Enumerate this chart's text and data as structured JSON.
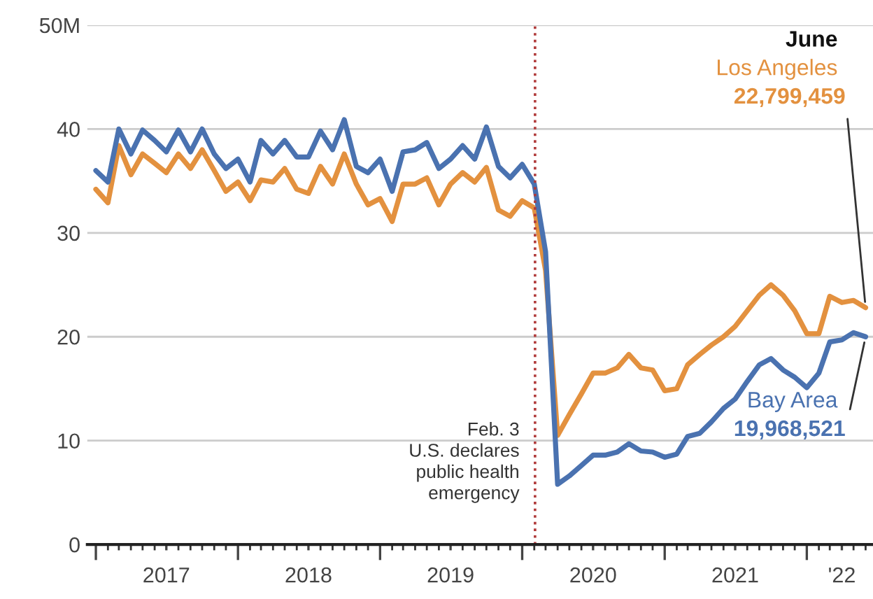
{
  "chart_data": {
    "type": "line",
    "x": [
      "2017-01",
      "2017-02",
      "2017-03",
      "2017-04",
      "2017-05",
      "2017-06",
      "2017-07",
      "2017-08",
      "2017-09",
      "2017-10",
      "2017-11",
      "2017-12",
      "2018-01",
      "2018-02",
      "2018-03",
      "2018-04",
      "2018-05",
      "2018-06",
      "2018-07",
      "2018-08",
      "2018-09",
      "2018-10",
      "2018-11",
      "2018-12",
      "2019-01",
      "2019-02",
      "2019-03",
      "2019-04",
      "2019-05",
      "2019-06",
      "2019-07",
      "2019-08",
      "2019-09",
      "2019-10",
      "2019-11",
      "2019-12",
      "2020-01",
      "2020-02",
      "2020-03",
      "2020-04",
      "2020-05",
      "2020-06",
      "2020-07",
      "2020-08",
      "2020-09",
      "2020-10",
      "2020-11",
      "2020-12",
      "2021-01",
      "2021-02",
      "2021-03",
      "2021-04",
      "2021-05",
      "2021-06",
      "2021-07",
      "2021-08",
      "2021-09",
      "2021-10",
      "2021-11",
      "2021-12",
      "2022-01",
      "2022-02",
      "2022-03",
      "2022-04",
      "2022-05",
      "2022-06"
    ],
    "series": [
      {
        "name": "Los Angeles",
        "color": "#e3913f",
        "values": [
          34.2,
          32.9,
          38.4,
          35.6,
          37.6,
          36.7,
          35.8,
          37.6,
          36.2,
          38,
          36,
          34,
          34.9,
          33.1,
          35.1,
          34.9,
          36.2,
          34.2,
          33.8,
          36.4,
          34.7,
          37.6,
          34.7,
          32.7,
          33.3,
          31.1,
          34.7,
          34.7,
          35.3,
          32.7,
          34.7,
          35.8,
          34.9,
          36.3,
          32.2,
          31.6,
          33.1,
          32.4,
          26.4,
          10.5,
          12.5,
          14.5,
          16.5,
          16.5,
          17,
          18.3,
          17,
          16.8,
          14.8,
          15,
          17.3,
          18.3,
          19.2,
          20,
          21,
          22.5,
          24,
          25,
          24,
          22.5,
          20.3,
          20.3,
          23.9,
          23.3,
          23.5,
          22.8
        ]
      },
      {
        "name": "Bay Area",
        "color": "#4a72b0",
        "values": [
          36.0,
          34.9,
          40,
          37.6,
          39.9,
          38.9,
          37.8,
          39.9,
          37.8,
          40,
          37.6,
          36.2,
          37.1,
          34.9,
          38.9,
          37.6,
          38.9,
          37.3,
          37.3,
          39.8,
          38,
          40.9,
          36.4,
          35.8,
          37.1,
          34,
          37.8,
          38,
          38.7,
          36.2,
          37.1,
          38.4,
          37.1,
          40.2,
          36.4,
          35.3,
          36.6,
          34.7,
          28.2,
          5.8,
          6.6,
          7.6,
          8.6,
          8.6,
          8.9,
          9.7,
          9.0,
          8.9,
          8.4,
          8.7,
          10.4,
          10.7,
          11.8,
          13.1,
          14.0,
          15.7,
          17.3,
          17.9,
          16.8,
          16.1,
          15.1,
          16.5,
          19.5,
          19.7,
          20.4,
          20.0
        ]
      }
    ],
    "ylim": [
      0,
      50
    ],
    "yticks": [
      0,
      10,
      20,
      30,
      40,
      {
        "value": 50,
        "label": "50M"
      }
    ],
    "xlim": [
      "2016-12-10",
      "2022-06-20"
    ],
    "xticks": [
      {
        "value": "2017-01-01",
        "label": null
      },
      {
        "value": "2017-07-01",
        "label": "2017"
      },
      {
        "value": "2018-01-01",
        "label": null
      },
      {
        "value": "2018-07-01",
        "label": "2018"
      },
      {
        "value": "2019-01-01",
        "label": null
      },
      {
        "value": "2019-07-01",
        "label": "2019"
      },
      {
        "value": "2020-01-01",
        "label": null
      },
      {
        "value": "2020-07-01",
        "label": "2020"
      },
      {
        "value": "2021-01-01",
        "label": null
      },
      {
        "value": "2021-07-01",
        "label": "2021"
      },
      {
        "value": "2022-01-01",
        "label": null
      },
      {
        "value": "2022-04-01",
        "label": "'22"
      }
    ],
    "grid": "y",
    "legend": false,
    "line_style": "solid",
    "ref_lines": [
      {
        "axis": "x",
        "value": "2020-02-03",
        "label": "Feb. 3\nU.S. declares\npublic health\nemergency",
        "color": "#b03a3a",
        "line_style": "dotted"
      }
    ],
    "annotations": [
      "June",
      {
        "text": "22,799,459",
        "x": "2022-06",
        "y": 22.8
      },
      {
        "text": "19,968,521",
        "x": "2022-06",
        "y": 20.0
      }
    ]
  }
}
